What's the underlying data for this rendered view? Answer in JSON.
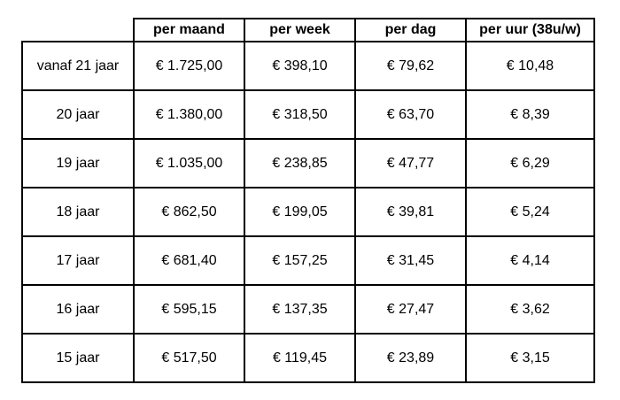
{
  "table": {
    "headers": [
      "",
      "per maand",
      "per week",
      "per dag",
      "per uur (38u/w)"
    ],
    "rows": [
      [
        "vanaf 21 jaar",
        "€ 1.725,00",
        "€ 398,10",
        "€ 79,62",
        "€ 10,48"
      ],
      [
        "20 jaar",
        "€ 1.380,00",
        "€ 318,50",
        "€ 63,70",
        "€ 8,39"
      ],
      [
        "19 jaar",
        "€ 1.035,00",
        "€ 238,85",
        "€ 47,77",
        "€ 6,29"
      ],
      [
        "18 jaar",
        "€ 862,50",
        "€ 199,05",
        "€ 39,81",
        "€ 5,24"
      ],
      [
        "17 jaar",
        "€ 681,40",
        "€ 157,25",
        "€ 31,45",
        "€ 4,14"
      ],
      [
        "16 jaar",
        "€ 595,15",
        "€ 137,35",
        "€ 27,47",
        "€ 3,62"
      ],
      [
        "15 jaar",
        "€ 517,50",
        "€ 119,45",
        "€ 23,89",
        "€ 3,15"
      ]
    ]
  }
}
